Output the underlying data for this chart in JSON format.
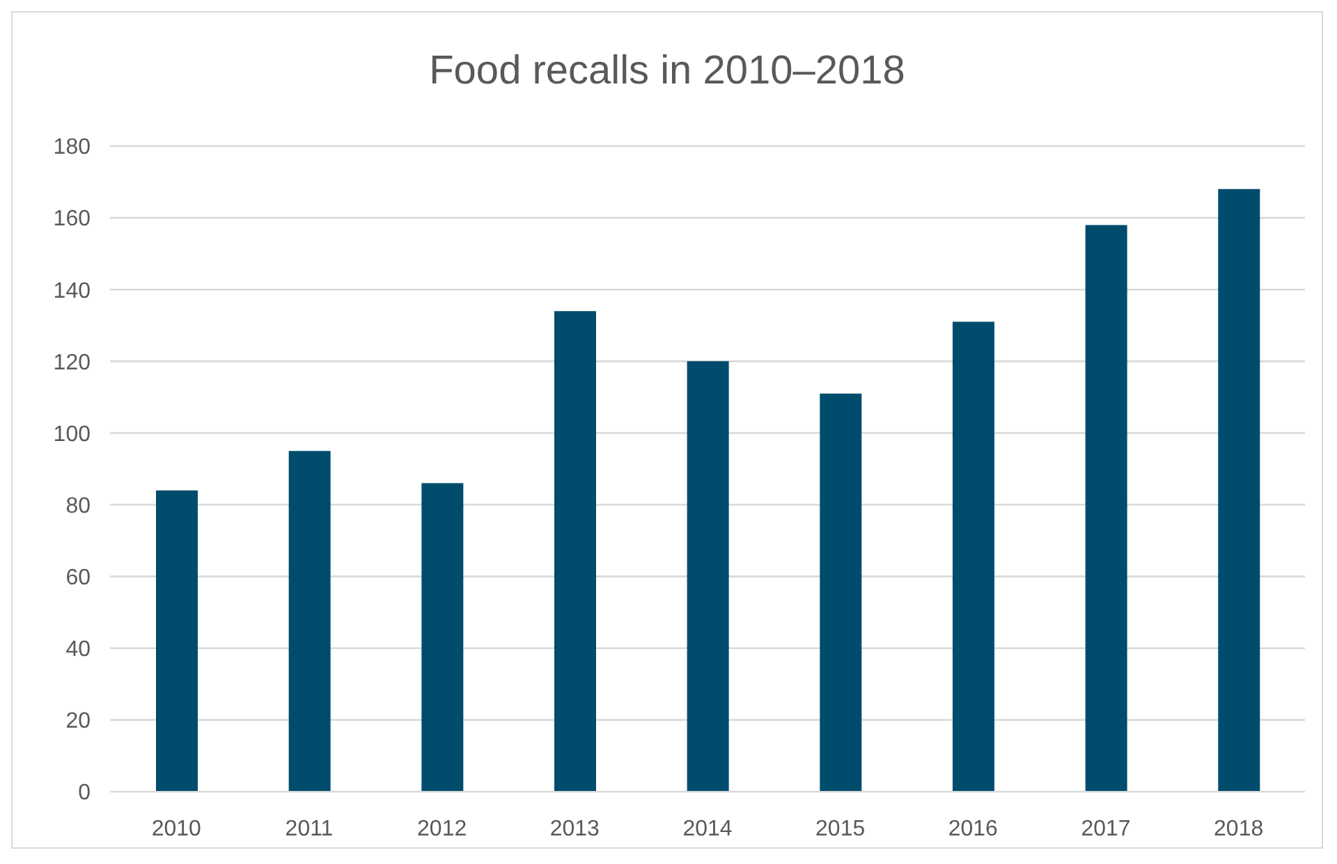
{
  "chart_data": {
    "type": "bar",
    "title": "Food recalls in 2010–2018",
    "categories": [
      "2010",
      "2011",
      "2012",
      "2013",
      "2014",
      "2015",
      "2016",
      "2017",
      "2018"
    ],
    "values": [
      84,
      95,
      86,
      134,
      120,
      111,
      131,
      158,
      168
    ],
    "color": "#004c6d",
    "ylim": [
      0,
      180
    ],
    "yticks": [
      0,
      20,
      40,
      60,
      80,
      100,
      120,
      140,
      160,
      180
    ],
    "grid": "y"
  }
}
